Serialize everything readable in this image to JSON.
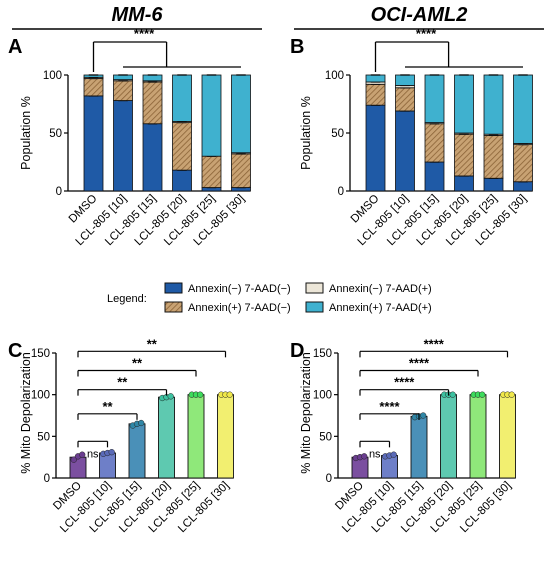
{
  "legend": {
    "title": "Legend:",
    "items": [
      {
        "label": "Annexin(−) 7-AAD(−)",
        "color": "#1f5aa6"
      },
      {
        "label": "Annexin(−) 7-AAD(+)",
        "color": "#ece6d8"
      },
      {
        "label": "Annexin(+) 7-AAD(−)",
        "color": "#b8894f"
      },
      {
        "label": "Annexin(+) 7-AAD(+)",
        "color": "#3fb1cf"
      }
    ]
  },
  "chart_data": [
    {
      "panel": "A",
      "title": "MM-6",
      "type": "bar",
      "stacked": true,
      "ylabel": "Population %",
      "ylim": [
        0,
        100
      ],
      "yticks": [
        0,
        50,
        100
      ],
      "categories": [
        "DMSO",
        "LCL-805 [10]",
        "LCL-805 [15]",
        "LCL-805 [20]",
        "LCL-805 [25]",
        "LCL-805 [30]"
      ],
      "series": [
        {
          "name": "Annexin(−) 7-AAD(−)",
          "values": [
            82,
            78,
            58,
            18,
            3,
            3
          ]
        },
        {
          "name": "Annexin(+) 7-AAD(−)",
          "values": [
            15,
            17,
            36,
            41,
            27,
            29
          ]
        },
        {
          "name": "Annexin(−) 7-AAD(+)",
          "values": [
            1,
            1,
            1,
            1,
            0,
            1
          ]
        },
        {
          "name": "Annexin(+) 7-AAD(+)",
          "values": [
            2,
            4,
            5,
            40,
            70,
            67
          ]
        }
      ],
      "significance": [
        {
          "label": "****",
          "from": 0,
          "to": [
            1,
            2,
            3,
            4,
            5
          ]
        }
      ]
    },
    {
      "panel": "B",
      "title": "OCI-AML2",
      "type": "bar",
      "stacked": true,
      "ylabel": "Population %",
      "ylim": [
        0,
        100
      ],
      "yticks": [
        0,
        50,
        100
      ],
      "categories": [
        "DMSO",
        "LCL-805 [10]",
        "LCL-805 [15]",
        "LCL-805 [20]",
        "LCL-805 [25]",
        "LCL-805 [30]"
      ],
      "series": [
        {
          "name": "Annexin(−) 7-AAD(−)",
          "values": [
            74,
            69,
            25,
            13,
            11,
            8
          ]
        },
        {
          "name": "Annexin(+) 7-AAD(−)",
          "values": [
            18,
            20,
            33,
            36,
            37,
            32
          ]
        },
        {
          "name": "Annexin(−) 7-AAD(+)",
          "values": [
            2,
            2,
            1,
            1,
            1,
            1
          ]
        },
        {
          "name": "Annexin(+) 7-AAD(+)",
          "values": [
            6,
            9,
            41,
            50,
            51,
            59
          ]
        }
      ],
      "significance": [
        {
          "label": "****",
          "from": 0,
          "to": [
            1,
            2,
            3,
            4,
            5
          ]
        }
      ]
    },
    {
      "panel": "C",
      "type": "bar",
      "ylabel": "% Mito Depolarization",
      "ylim": [
        0,
        150
      ],
      "yticks": [
        0,
        50,
        100,
        150
      ],
      "categories": [
        "DMSO",
        "LCL-805 [10]",
        "LCL-805 [15]",
        "LCL-805 [20]",
        "LCL-805 [25]",
        "LCL-805 [30]"
      ],
      "values": [
        25,
        30,
        65,
        97,
        100,
        100
      ],
      "points": [
        [
          22,
          26,
          28
        ],
        [
          29,
          30,
          31
        ],
        [
          63,
          65,
          66
        ],
        [
          96,
          97,
          98
        ],
        [
          100,
          100,
          100
        ],
        [
          100,
          100,
          100
        ]
      ],
      "colors": [
        "#7b4fa0",
        "#6e7fc8",
        "#4a90b8",
        "#5ec9b0",
        "#8fe87a",
        "#f2ef70"
      ],
      "point_colors": [
        "#6a3d8f",
        "#5a6ab8",
        "#2f86a6",
        "#3cc1a0",
        "#3ddc5c",
        "#f0e84a"
      ],
      "comparisons": [
        {
          "label": "ns",
          "vs": 1
        },
        {
          "label": "**",
          "vs": 2
        },
        {
          "label": "**",
          "vs": 3
        },
        {
          "label": "**",
          "vs": 4
        },
        {
          "label": "**",
          "vs": 5
        }
      ]
    },
    {
      "panel": "D",
      "type": "bar",
      "ylabel": "% Mito Depolarization",
      "ylim": [
        0,
        150
      ],
      "yticks": [
        0,
        50,
        100,
        150
      ],
      "categories": [
        "DMSO",
        "LCL-805 [10]",
        "LCL-805 [15]",
        "LCL-805 [20]",
        "LCL-805 [25]",
        "LCL-805 [30]"
      ],
      "values": [
        25,
        27,
        74,
        100,
        100,
        100
      ],
      "points": [
        [
          24,
          25,
          26
        ],
        [
          26,
          27,
          28
        ],
        [
          73,
          74,
          75
        ],
        [
          100,
          100,
          100
        ],
        [
          100,
          100,
          100
        ],
        [
          100,
          100,
          100
        ]
      ],
      "colors": [
        "#7b4fa0",
        "#6e7fc8",
        "#4a90b8",
        "#5ec9b0",
        "#8fe87a",
        "#f2ef70"
      ],
      "point_colors": [
        "#6a3d8f",
        "#5a6ab8",
        "#2f86a6",
        "#3cc1a0",
        "#3ddc5c",
        "#f0e84a"
      ],
      "comparisons": [
        {
          "label": "ns",
          "vs": 1
        },
        {
          "label": "****",
          "vs": 2
        },
        {
          "label": "****",
          "vs": 3
        },
        {
          "label": "****",
          "vs": 4
        },
        {
          "label": "****",
          "vs": 5
        }
      ]
    }
  ]
}
